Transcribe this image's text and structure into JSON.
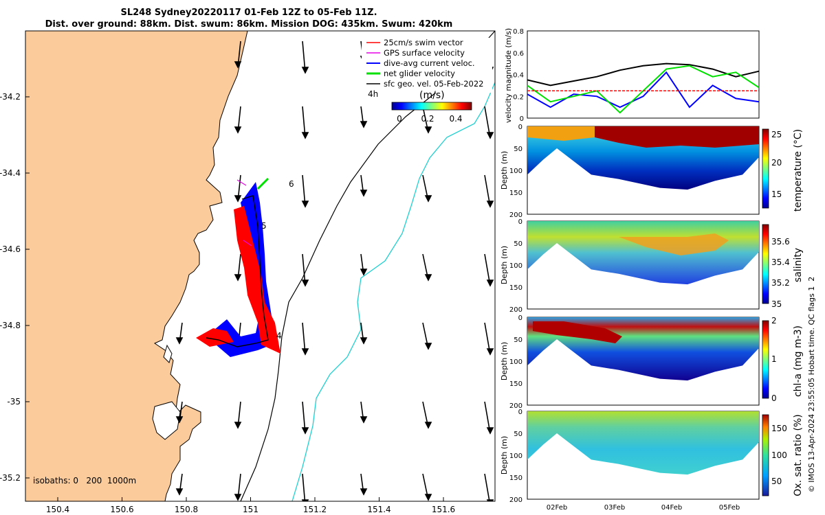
{
  "title": {
    "line1": "SL248 Sydney20220117 01-Feb 12Z to 05-Feb 11Z.",
    "line2": "Dist. over ground: 88km. Dist. swum: 86km. Mission DOG: 435km. Swum: 420km"
  },
  "map": {
    "lon_ticks": [
      "150.4",
      "150.6",
      "150.8",
      "151",
      "151.2",
      "151.4",
      "151.6"
    ],
    "lat_ticks": [
      "-34.2",
      "-34.4",
      "-34.6",
      "-34.8",
      "-35",
      "-35.2"
    ],
    "lon_range": [
      150.3,
      151.78
    ],
    "lat_range": [
      -35.25,
      -34.05
    ],
    "land_color": "#fbcb9c",
    "legend": [
      {
        "label": "25cm/s swim vector",
        "color": "#ff0000"
      },
      {
        "label": "GPS surface velocity",
        "color": "#e600e6"
      },
      {
        "label": "dive-avg current veloc.",
        "color": "#0000ff"
      },
      {
        "label": "net glider velocity",
        "color": "#00e000"
      },
      {
        "label": "sfc geo. vel. 05-Feb-2022",
        "color": "#000000"
      }
    ],
    "time_label": "4h",
    "colorbar_unit": "(m/s)",
    "colorbar_ticks": [
      "0",
      "0.2",
      "0.4"
    ],
    "track_labels": [
      "6",
      "5",
      "4"
    ],
    "isobaths_label": "isobaths: 0   200  1000m"
  },
  "chart_data": [
    {
      "type": "line",
      "ylabel": "velocity magnitude (m/s)",
      "ylim": [
        0,
        0.8
      ],
      "y_ticks": [
        "0",
        "0.2",
        "0.4",
        "0.6",
        "0.8"
      ],
      "series": [
        {
          "color": "#000000",
          "x": [
            0,
            0.1,
            0.2,
            0.3,
            0.4,
            0.5,
            0.6,
            0.7,
            0.8,
            0.9,
            1.0
          ],
          "values": [
            0.35,
            0.3,
            0.34,
            0.38,
            0.44,
            0.48,
            0.5,
            0.49,
            0.45,
            0.38,
            0.43
          ]
        },
        {
          "color": "#0000ff",
          "x": [
            0,
            0.1,
            0.2,
            0.3,
            0.4,
            0.5,
            0.6,
            0.7,
            0.8,
            0.9,
            1.0
          ],
          "values": [
            0.22,
            0.1,
            0.22,
            0.2,
            0.1,
            0.2,
            0.42,
            0.1,
            0.3,
            0.18,
            0.15
          ]
        },
        {
          "color": "#00e000",
          "x": [
            0,
            0.1,
            0.2,
            0.3,
            0.4,
            0.5,
            0.6,
            0.7,
            0.8,
            0.9,
            1.0
          ],
          "values": [
            0.3,
            0.15,
            0.2,
            0.25,
            0.05,
            0.25,
            0.45,
            0.48,
            0.38,
            0.42,
            0.28
          ]
        },
        {
          "color": "#ff0000",
          "x": [
            0,
            1.0
          ],
          "values": [
            0.25,
            0.25
          ]
        }
      ]
    },
    {
      "type": "heatmap",
      "colorbar_label": "temperature (°C)",
      "ylabel": "Depth (m)",
      "ylim": [
        0,
        200
      ],
      "y_ticks": [
        "0",
        "50",
        "100",
        "150",
        "200"
      ],
      "colorbar_ticks": [
        "15",
        "20",
        "25"
      ],
      "x_ticks": [
        "02Feb",
        "03Feb",
        "04Feb",
        "05Feb"
      ]
    },
    {
      "type": "heatmap",
      "colorbar_label": "salinity",
      "ylabel": "Depth (m)",
      "ylim": [
        0,
        200
      ],
      "y_ticks": [
        "50",
        "100",
        "150",
        "200"
      ],
      "colorbar_ticks": [
        "35",
        "35.2",
        "35.4",
        "35.6"
      ],
      "x_ticks": [
        "02Feb",
        "03Feb",
        "04Feb",
        "05Feb"
      ]
    },
    {
      "type": "heatmap",
      "colorbar_label": "chl-a (mg m-3)",
      "ylabel": "Depth (m)",
      "ylim": [
        0,
        200
      ],
      "y_ticks": [
        "0",
        "50",
        "100",
        "150",
        "200"
      ],
      "colorbar_ticks": [
        "0",
        "1",
        "2"
      ],
      "x_ticks": [
        "02Feb",
        "03Feb",
        "04Feb",
        "05Feb"
      ]
    },
    {
      "type": "heatmap",
      "colorbar_label": "Ox. sat. ratio (%)",
      "ylabel": "Depth (m)",
      "ylim": [
        0,
        200
      ],
      "y_ticks": [
        "50",
        "100",
        "150",
        "200"
      ],
      "colorbar_ticks": [
        "50",
        "100",
        "150"
      ],
      "x_ticks": [
        "02Feb",
        "03Feb",
        "04Feb",
        "05Feb"
      ]
    }
  ],
  "side_note": "© IMOS 13-Apr-2024 23:55:05 Hobart time. QC flags 1  2"
}
